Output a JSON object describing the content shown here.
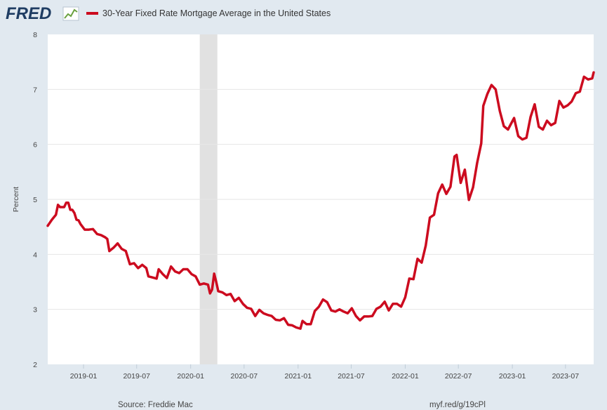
{
  "header": {
    "logo_text": "FRED",
    "legend_label": "30-Year Fixed Rate Mortgage Average in the United States"
  },
  "footer": {
    "source": "Source: Freddie Mac",
    "link": "myf.red/g/19cPl"
  },
  "colors": {
    "background": "#e1e9f0",
    "plot_background": "#ffffff",
    "series": "#cc0b1f",
    "recession": "#e1e1e1",
    "gridline": "#e6e6e6"
  },
  "chart_data": {
    "type": "line",
    "title": "30-Year Fixed Rate Mortgage Average in the United States",
    "xlabel": "",
    "ylabel": "Percent",
    "ylim": [
      2,
      8
    ],
    "xlim": [
      "2018-09-01",
      "2023-10-05"
    ],
    "grid": "horizontal",
    "legend_position": "top",
    "yticks": [
      "2",
      "3",
      "4",
      "5",
      "6",
      "7",
      "8"
    ],
    "xticks": [
      {
        "date": "2019-01-01",
        "label": "2019-01"
      },
      {
        "date": "2019-07-01",
        "label": "2019-07"
      },
      {
        "date": "2020-01-01",
        "label": "2020-01"
      },
      {
        "date": "2020-07-01",
        "label": "2020-07"
      },
      {
        "date": "2021-01-01",
        "label": "2021-01"
      },
      {
        "date": "2021-07-01",
        "label": "2021-07"
      },
      {
        "date": "2022-01-01",
        "label": "2022-01"
      },
      {
        "date": "2022-07-01",
        "label": "2022-07"
      },
      {
        "date": "2023-01-01",
        "label": "2023-01"
      },
      {
        "date": "2023-07-01",
        "label": "2023-07"
      }
    ],
    "recession": {
      "start": "2020-02-01",
      "end": "2020-04-01"
    },
    "series": [
      {
        "name": "30-Year Fixed Rate Mortgage Average in the United States",
        "x": [
          "2018-09-01",
          "2018-09-15",
          "2018-09-29",
          "2018-10-06",
          "2018-10-13",
          "2018-10-27",
          "2018-11-03",
          "2018-11-10",
          "2018-11-17",
          "2018-11-24",
          "2018-12-01",
          "2018-12-08",
          "2018-12-15",
          "2018-12-22",
          "2019-01-05",
          "2019-01-19",
          "2019-02-02",
          "2019-02-16",
          "2019-03-02",
          "2019-03-16",
          "2019-03-23",
          "2019-03-30",
          "2019-04-13",
          "2019-04-27",
          "2019-05-11",
          "2019-05-25",
          "2019-06-08",
          "2019-06-22",
          "2019-07-06",
          "2019-07-20",
          "2019-08-03",
          "2019-08-10",
          "2019-08-24",
          "2019-09-07",
          "2019-09-14",
          "2019-09-28",
          "2019-10-12",
          "2019-10-26",
          "2019-11-09",
          "2019-11-23",
          "2019-12-07",
          "2019-12-21",
          "2020-01-04",
          "2020-01-18",
          "2020-02-01",
          "2020-02-15",
          "2020-02-29",
          "2020-03-07",
          "2020-03-14",
          "2020-03-21",
          "2020-03-28",
          "2020-04-04",
          "2020-04-18",
          "2020-05-02",
          "2020-05-16",
          "2020-05-30",
          "2020-06-13",
          "2020-06-27",
          "2020-07-11",
          "2020-07-25",
          "2020-08-08",
          "2020-08-22",
          "2020-09-05",
          "2020-09-19",
          "2020-10-03",
          "2020-10-17",
          "2020-10-31",
          "2020-11-14",
          "2020-11-28",
          "2020-12-12",
          "2020-12-26",
          "2021-01-09",
          "2021-01-16",
          "2021-01-30",
          "2021-02-13",
          "2021-02-27",
          "2021-03-13",
          "2021-03-27",
          "2021-04-10",
          "2021-04-24",
          "2021-05-08",
          "2021-05-22",
          "2021-06-05",
          "2021-06-19",
          "2021-07-03",
          "2021-07-17",
          "2021-07-31",
          "2021-08-14",
          "2021-08-28",
          "2021-09-11",
          "2021-09-25",
          "2021-10-09",
          "2021-10-23",
          "2021-11-06",
          "2021-11-20",
          "2021-12-04",
          "2021-12-18",
          "2022-01-01",
          "2022-01-15",
          "2022-01-29",
          "2022-02-12",
          "2022-02-26",
          "2022-03-12",
          "2022-03-26",
          "2022-04-09",
          "2022-04-23",
          "2022-05-07",
          "2022-05-21",
          "2022-06-04",
          "2022-06-18",
          "2022-06-25",
          "2022-07-09",
          "2022-07-23",
          "2022-08-06",
          "2022-08-20",
          "2022-09-03",
          "2022-09-17",
          "2022-09-24",
          "2022-10-08",
          "2022-10-22",
          "2022-11-05",
          "2022-11-19",
          "2022-12-03",
          "2022-12-17",
          "2023-01-07",
          "2023-01-21",
          "2023-02-04",
          "2023-02-18",
          "2023-03-04",
          "2023-03-18",
          "2023-04-01",
          "2023-04-15",
          "2023-04-29",
          "2023-05-13",
          "2023-05-27",
          "2023-06-10",
          "2023-06-24",
          "2023-07-08",
          "2023-07-22",
          "2023-08-05",
          "2023-08-19",
          "2023-09-02",
          "2023-09-16",
          "2023-09-30",
          "2023-10-05"
        ],
        "values": [
          4.52,
          4.63,
          4.72,
          4.9,
          4.86,
          4.86,
          4.94,
          4.94,
          4.81,
          4.81,
          4.75,
          4.63,
          4.62,
          4.55,
          4.45,
          4.45,
          4.46,
          4.37,
          4.35,
          4.31,
          4.28,
          4.06,
          4.12,
          4.2,
          4.1,
          4.06,
          3.82,
          3.84,
          3.75,
          3.81,
          3.75,
          3.6,
          3.58,
          3.56,
          3.73,
          3.64,
          3.57,
          3.78,
          3.69,
          3.66,
          3.73,
          3.73,
          3.64,
          3.6,
          3.45,
          3.47,
          3.45,
          3.29,
          3.36,
          3.65,
          3.5,
          3.33,
          3.31,
          3.26,
          3.28,
          3.15,
          3.21,
          3.1,
          3.03,
          3.01,
          2.88,
          2.99,
          2.93,
          2.9,
          2.88,
          2.81,
          2.8,
          2.84,
          2.72,
          2.71,
          2.67,
          2.65,
          2.79,
          2.73,
          2.73,
          2.97,
          3.05,
          3.18,
          3.13,
          2.98,
          2.96,
          3.0,
          2.96,
          2.93,
          3.02,
          2.88,
          2.8,
          2.87,
          2.87,
          2.88,
          3.01,
          3.05,
          3.14,
          2.98,
          3.1,
          3.1,
          3.05,
          3.22,
          3.56,
          3.55,
          3.92,
          3.85,
          4.16,
          4.67,
          4.72,
          5.11,
          5.27,
          5.1,
          5.23,
          5.78,
          5.81,
          5.3,
          5.54,
          4.99,
          5.22,
          5.66,
          6.02,
          6.7,
          6.92,
          7.08,
          7.0,
          6.61,
          6.33,
          6.27,
          6.48,
          6.15,
          6.09,
          6.12,
          6.5,
          6.73,
          6.32,
          6.27,
          6.43,
          6.35,
          6.39,
          6.79,
          6.67,
          6.71,
          6.78,
          6.93,
          6.96,
          7.23,
          7.18,
          7.2,
          7.31
        ]
      }
    ]
  }
}
